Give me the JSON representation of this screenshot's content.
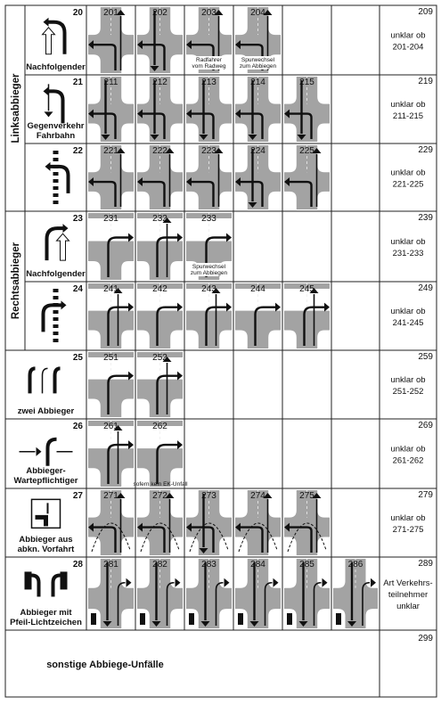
{
  "groups": [
    {
      "label": "Linksabbieger"
    },
    {
      "label": "Rechtsabbieger"
    }
  ],
  "rows": [
    {
      "num": "20",
      "label": [
        "Nachfolgender"
      ],
      "codes": [
        "201",
        "202",
        "203",
        "204"
      ],
      "captions": {
        "203": [
          "Radfahrer",
          "vom Radweg"
        ],
        "204": [
          "Spurwechsel",
          "zum Abbiegen"
        ]
      },
      "total": "209",
      "note": [
        "unklar ob",
        "201-204"
      ]
    },
    {
      "num": "21",
      "label": [
        "Gegenverkehr",
        "Fahrbahn"
      ],
      "codes": [
        "211",
        "212",
        "213",
        "214",
        "215"
      ],
      "captions": {},
      "total": "219",
      "note": [
        "unklar ob",
        "211-215"
      ]
    },
    {
      "num": "22",
      "label": [],
      "codes": [
        "221",
        "222",
        "223",
        "224",
        "225"
      ],
      "captions": {},
      "total": "229",
      "note": [
        "unklar ob",
        "221-225"
      ]
    },
    {
      "num": "23",
      "label": [
        "Nachfolgender"
      ],
      "codes": [
        "231",
        "232",
        "233"
      ],
      "captions": {
        "233": [
          "Spurwechsel",
          "zum Abbiegen"
        ]
      },
      "total": "239",
      "note": [
        "unklar ob",
        "231-233"
      ]
    },
    {
      "num": "24",
      "label": [],
      "codes": [
        "241",
        "242",
        "243",
        "244",
        "245"
      ],
      "captions": {},
      "total": "249",
      "note": [
        "unklar ob",
        "241-245"
      ]
    },
    {
      "num": "25",
      "label": [
        "zwei Abbieger"
      ],
      "codes": [
        "251",
        "252"
      ],
      "captions": {},
      "total": "259",
      "note": [
        "unklar ob",
        "251-252"
      ]
    },
    {
      "num": "26",
      "label": [
        "Abbieger-",
        "Wartepflichtiger"
      ],
      "codes": [
        "261",
        "262"
      ],
      "captions": {},
      "footnote": "sofern kein EK-Unfall",
      "total": "269",
      "note": [
        "unklar ob",
        "261-262"
      ]
    },
    {
      "num": "27",
      "label": [
        "Abbieger aus",
        "abkn. Vorfahrt"
      ],
      "codes": [
        "271",
        "272",
        "273",
        "274",
        "275"
      ],
      "captions": {},
      "total": "279",
      "note": [
        "unklar ob",
        "271-275"
      ]
    },
    {
      "num": "28",
      "label": [
        "Abbieger mit",
        "Pfeil-Lichtzeichen"
      ],
      "codes": [
        "281",
        "282",
        "283",
        "284",
        "285",
        "286"
      ],
      "captions": {},
      "total": "289",
      "note": [
        "Art Verkehrs-",
        "teilnehmer",
        "unklar"
      ]
    }
  ],
  "other": {
    "total": "299",
    "label": "sonstige Abbiege-Unfälle"
  },
  "colors": {
    "road": "#a3a3a3",
    "line": "#333333",
    "arrow": "#111111"
  }
}
